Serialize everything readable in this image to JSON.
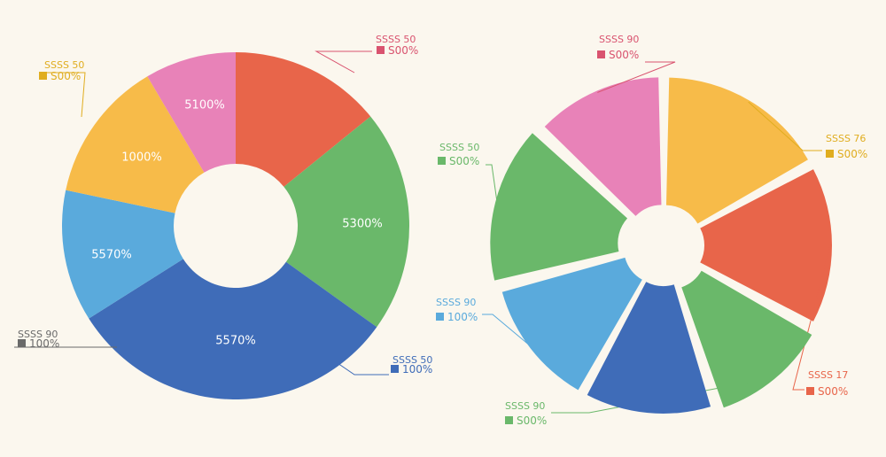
{
  "chart_data": [
    {
      "type": "pie",
      "style": "donut",
      "slices": [
        {
          "name": "Red",
          "value": 15,
          "color": "#e8654a",
          "inner_label": "",
          "callout_name": "SSSS 50",
          "callout_pct": "S00%",
          "callout_color": "#d9536f"
        },
        {
          "name": "Green",
          "value": 22,
          "color": "#6ab86a",
          "inner_label": "5300%",
          "callout_name": "",
          "callout_pct": "",
          "callout_color": ""
        },
        {
          "name": "Dark Blue",
          "value": 33,
          "color": "#3f6cb8",
          "inner_label": "5570%",
          "callout_name": "SSSS 50",
          "callout_pct": "100%",
          "callout_color": "#3f6cb8"
        },
        {
          "name": "Light Blue",
          "value": 13,
          "color": "#5aaadc",
          "inner_label": "5570%",
          "callout_name": "SSSS 90",
          "callout_pct": "100%",
          "callout_color": "#6a6a6a"
        },
        {
          "name": "Yellow",
          "value": 14,
          "color": "#f7bb49",
          "inner_label": "1000%",
          "callout_name": "SSSS 50",
          "callout_pct": "S00%",
          "callout_color": "#e0ad1f"
        },
        {
          "name": "Pink",
          "value": 9,
          "color": "#e882b8",
          "inner_label": "5100%",
          "callout_name": "",
          "callout_pct": "",
          "callout_color": ""
        }
      ]
    },
    {
      "type": "pie",
      "style": "exploded-donut",
      "slices": [
        {
          "name": "Yellow",
          "value": 17,
          "color": "#f7bb49",
          "callout_name": "SSSS 76",
          "callout_pct": "S00%",
          "callout_color": "#e0ad1f"
        },
        {
          "name": "Red",
          "value": 16,
          "color": "#e8654a",
          "callout_name": "SSSS 17",
          "callout_pct": "S00%",
          "callout_color": "#e8654a"
        },
        {
          "name": "Green",
          "value": 12,
          "color": "#6ab86a",
          "callout_name": "SSSS 90",
          "callout_pct": "S00%",
          "callout_color": "#6ab86a"
        },
        {
          "name": "Dark Blue",
          "value": 13,
          "color": "#3f6cb8",
          "callout_name": "",
          "callout_pct": "",
          "callout_color": ""
        },
        {
          "name": "Light Blue",
          "value": 13,
          "color": "#5aaadc",
          "callout_name": "SSSS 90",
          "callout_pct": "100%",
          "callout_color": "#5aaadc"
        },
        {
          "name": "Green 2",
          "value": 16,
          "color": "#6ab86a",
          "callout_name": "SSSS 50",
          "callout_pct": "S00%",
          "callout_color": "#6ab86a"
        },
        {
          "name": "Pink",
          "value": 13,
          "color": "#e882b8",
          "callout_name": "SSSS 90",
          "callout_pct": "S00%",
          "callout_color": "#d9536f"
        }
      ]
    }
  ]
}
